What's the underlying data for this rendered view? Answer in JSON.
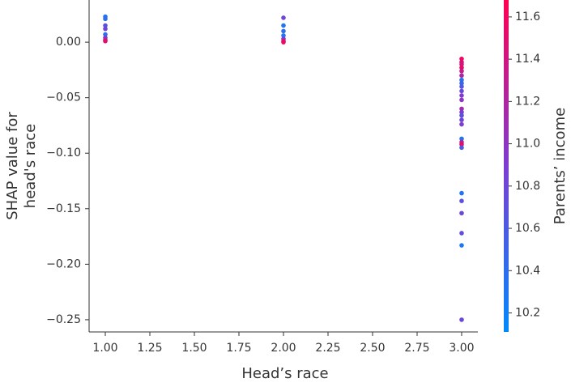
{
  "chart_data": {
    "type": "scatter",
    "xlabel": "Head’s race",
    "ylabel": [
      "SHAP value for",
      "head's race"
    ],
    "colorbar_label": "Parents’ income",
    "colormap": [
      "#008afb",
      "#7b3dd2",
      "#ff0052"
    ],
    "xlim": [
      0.909,
      3.091
    ],
    "xticks": [
      {
        "value": 1,
        "label": "1.00"
      },
      {
        "value": 1.25,
        "label": "1.25"
      },
      {
        "value": 1.5,
        "label": "1.50"
      },
      {
        "value": 1.75,
        "label": "1.75"
      },
      {
        "value": 2,
        "label": "2.00"
      },
      {
        "value": 2.25,
        "label": "2.25"
      },
      {
        "value": 2.5,
        "label": "2.50"
      },
      {
        "value": 2.75,
        "label": "2.75"
      },
      {
        "value": 3,
        "label": "3.00"
      }
    ],
    "ylim": [
      -0.261,
      0.038
    ],
    "yticks": [
      {
        "value": 0,
        "label": "0.00"
      },
      {
        "value": -0.05,
        "label": "−0.05"
      },
      {
        "value": -0.1,
        "label": "−0.10"
      },
      {
        "value": -0.15,
        "label": "−0.15"
      },
      {
        "value": -0.2,
        "label": "−0.20"
      },
      {
        "value": -0.25,
        "label": "−0.25"
      }
    ],
    "clim": [
      10.11,
      11.68
    ],
    "cticks": [
      10.2,
      10.4,
      10.6,
      10.8,
      {
        "value": 11,
        "label": "11.0"
      },
      11.2,
      11.4,
      11.6
    ],
    "series": [
      {
        "x": [
          1,
          1,
          1,
          1,
          1,
          1,
          1,
          1,
          2,
          2,
          2,
          2,
          2,
          2,
          2,
          3,
          3,
          3,
          3,
          3,
          3,
          3,
          3,
          3,
          3,
          3,
          3,
          3,
          3,
          3,
          3,
          3,
          3,
          3,
          3,
          3,
          3,
          3,
          3,
          3,
          3,
          3
        ],
        "values": [
          0.023,
          0.021,
          0.015,
          0.012,
          0.007,
          0.004,
          0.002,
          0.001,
          0.022,
          0.015,
          0.01,
          0.006,
          0.003,
          0.001,
          0.0,
          -0.015,
          -0.018,
          -0.02,
          -0.023,
          -0.026,
          -0.03,
          -0.034,
          -0.037,
          -0.04,
          -0.044,
          -0.048,
          -0.052,
          -0.06,
          -0.063,
          -0.066,
          -0.07,
          -0.074,
          -0.087,
          -0.09,
          -0.092,
          -0.095,
          -0.136,
          -0.143,
          -0.154,
          -0.172,
          -0.183,
          -0.25
        ],
        "color_values": [
          10.3,
          10.4,
          10.7,
          10.8,
          10.4,
          10.9,
          11.3,
          11.5,
          10.8,
          10.3,
          10.4,
          10.3,
          10.9,
          11.4,
          11.6,
          11.6,
          11.5,
          11.4,
          11.6,
          11.3,
          11.2,
          10.4,
          10.5,
          10.6,
          10.8,
          10.9,
          11.0,
          11.1,
          10.9,
          10.7,
          10.8,
          10.9,
          10.3,
          11.3,
          11.5,
          10.6,
          10.3,
          10.7,
          10.8,
          10.7,
          10.3,
          10.8
        ]
      }
    ]
  }
}
